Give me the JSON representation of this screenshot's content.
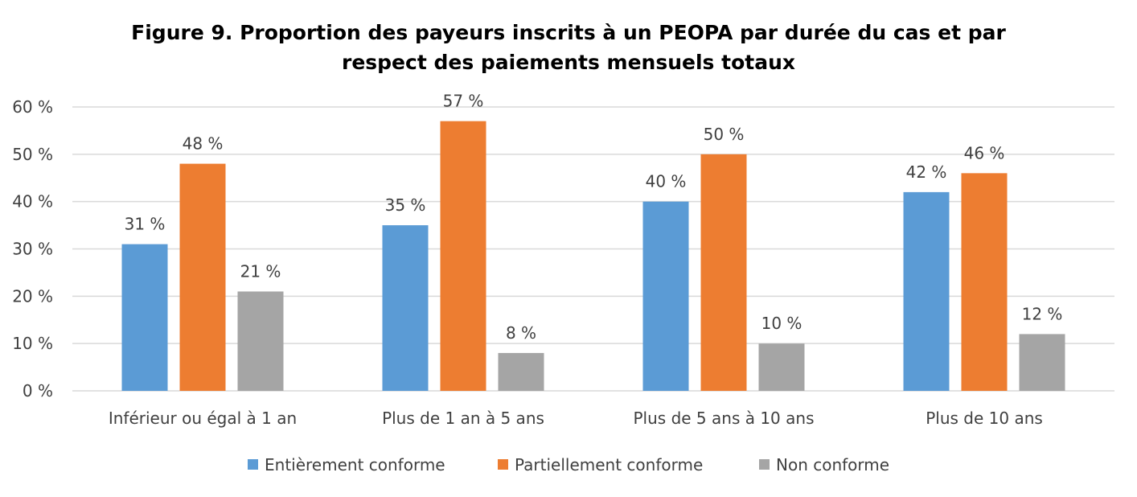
{
  "chart_data": {
    "type": "bar",
    "title_lines": [
      "Figure 9. Proportion des payeurs inscrits à un PEOPA par durée du cas et par",
      "respect des paiements mensuels totaux"
    ],
    "categories": [
      "Inférieur ou égal à 1 an",
      "Plus de 1 an à 5 ans",
      "Plus de 5 ans à 10 ans",
      "Plus de 10 ans"
    ],
    "series": [
      {
        "name": "Entièrement conforme",
        "values": [
          31,
          35,
          40,
          42
        ],
        "labels": [
          "31 %",
          "35 %",
          "40 %",
          "42 %"
        ],
        "color": "#5B9BD5"
      },
      {
        "name": "Partiellement conforme",
        "values": [
          48,
          57,
          50,
          46
        ],
        "labels": [
          "48 %",
          "57 %",
          "50 %",
          "46 %"
        ],
        "color": "#ED7D31"
      },
      {
        "name": "Non conforme",
        "values": [
          21,
          8,
          10,
          12
        ],
        "labels": [
          "21 %",
          "8 %",
          "10 %",
          "12 %"
        ],
        "color": "#A5A5A5"
      }
    ],
    "yticks": [
      {
        "value": 0,
        "label": "0 %"
      },
      {
        "value": 10,
        "label": "10 %"
      },
      {
        "value": 20,
        "label": "20 %"
      },
      {
        "value": 30,
        "label": "30 %"
      },
      {
        "value": 40,
        "label": "40 %"
      },
      {
        "value": 50,
        "label": "50 %"
      },
      {
        "value": 60,
        "label": "60 %"
      }
    ],
    "ylim": [
      0,
      60
    ],
    "grid": true,
    "legend_position": "bottom",
    "gridline_color": "#D9D9D9",
    "text_color": "#404040"
  }
}
